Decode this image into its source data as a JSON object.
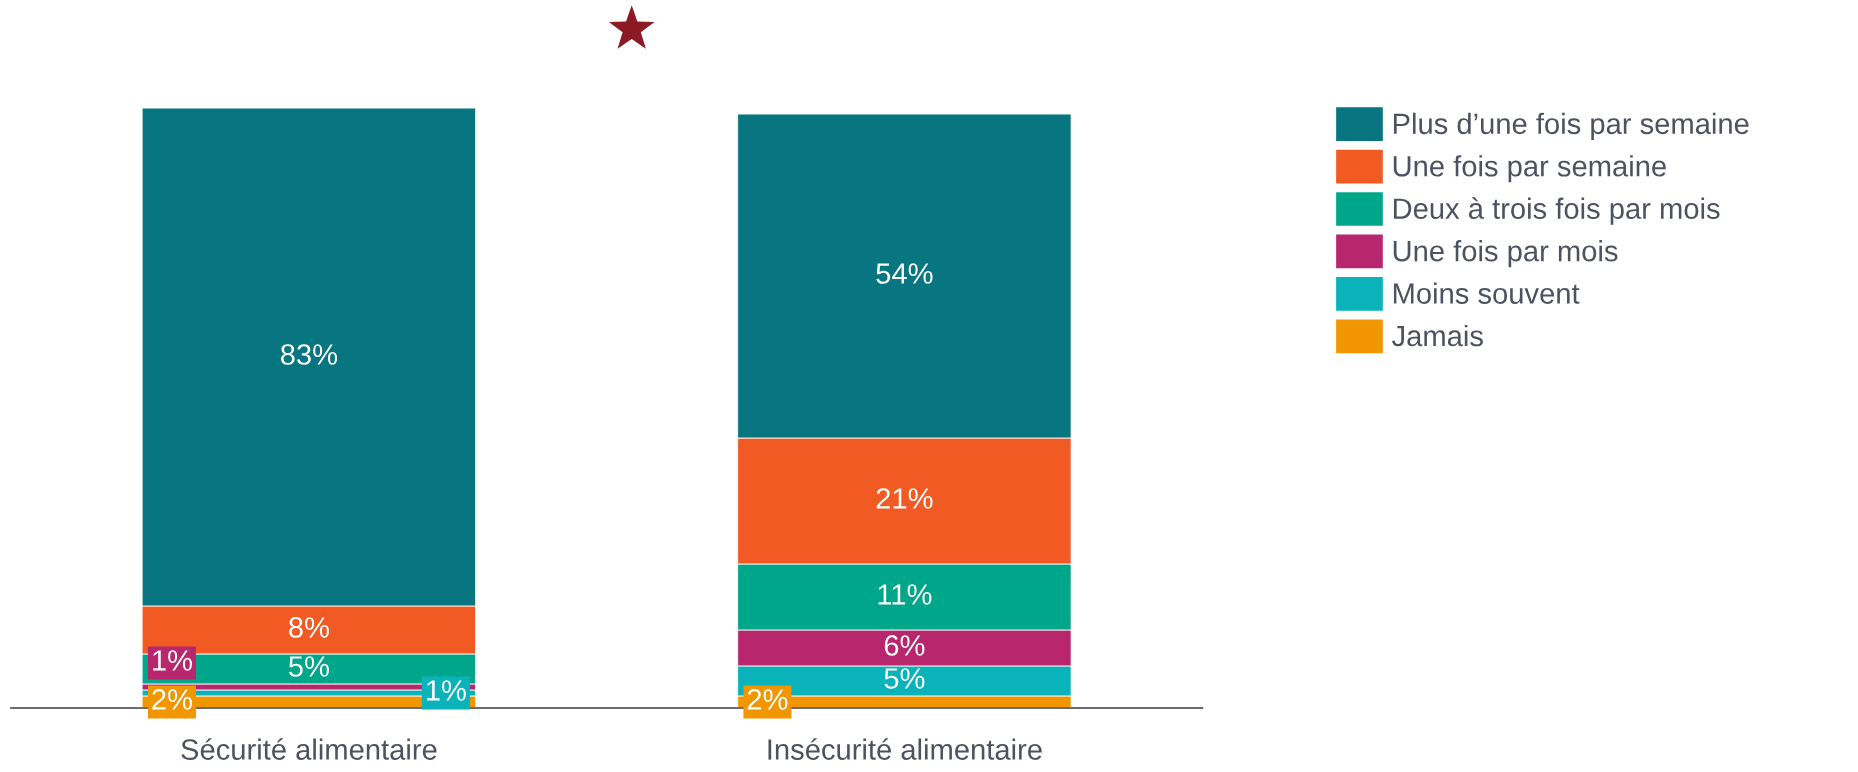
{
  "chart_data": {
    "type": "bar",
    "stacked": true,
    "categories": [
      "Sécurité alimentaire",
      "Insécurité alimentaire"
    ],
    "series": [
      {
        "name": "Jamais",
        "color": "#f29600",
        "values": [
          2,
          2
        ],
        "value_labels": [
          "2%",
          "2%"
        ]
      },
      {
        "name": "Moins souvent",
        "color": "#0ab2b9",
        "values": [
          1,
          5
        ],
        "value_labels": [
          "1%",
          "5%"
        ]
      },
      {
        "name": "Une fois par mois",
        "color": "#b8276d",
        "values": [
          1,
          6
        ],
        "value_labels": [
          "1%",
          "6%"
        ]
      },
      {
        "name": "Deux à trois fois par mois",
        "color": "#00a68a",
        "values": [
          5,
          11
        ],
        "value_labels": [
          "5%",
          "11%"
        ]
      },
      {
        "name": "Une fois par semaine",
        "color": "#f15a22",
        "values": [
          8,
          21
        ],
        "value_labels": [
          "8%",
          "21%"
        ]
      },
      {
        "name": "Plus d’une fois par semaine",
        "color": "#077680",
        "values": [
          83,
          54
        ],
        "value_labels": [
          "83%",
          "54%"
        ]
      }
    ],
    "legend": "right",
    "grid": false
  }
}
